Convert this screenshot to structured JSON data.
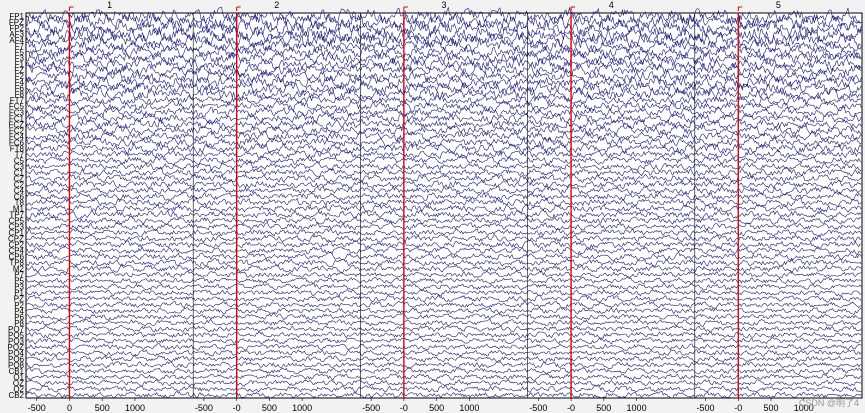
{
  "viewer": {
    "channels": [
      "FP1",
      "FPZ",
      "FP2",
      "AF3",
      "AF4",
      "F7",
      "F5",
      "F3",
      "F1",
      "FZ",
      "F2",
      "F4",
      "F6",
      "F8",
      "FT7",
      "FC5",
      "FC3",
      "FC1",
      "FCZ",
      "FC2",
      "FC4",
      "FC6",
      "FT8",
      "T7",
      "C5",
      "C3",
      "C1",
      "CZ",
      "C2",
      "C4",
      "C6",
      "T8",
      "M1",
      "TP7",
      "CP5",
      "CP3",
      "CP1",
      "CPZ",
      "CP2",
      "CP4",
      "CP6",
      "TP8",
      "M2",
      "P7",
      "P5",
      "P3",
      "P1",
      "PZ",
      "P2",
      "P4",
      "P6",
      "P8",
      "PO7",
      "PO5",
      "PO3",
      "POZ",
      "PO4",
      "PO6",
      "PO8",
      "CB1",
      "O1",
      "OZ",
      "O2",
      "CB2"
    ],
    "epochs": [
      "1",
      "2",
      "3",
      "4",
      "5"
    ],
    "epoch_ticks": [
      "-500",
      "0",
      "500",
      "1000"
    ],
    "epoch_ticks_alt": [
      "-500",
      "-0",
      "500",
      "1000"
    ],
    "trace_color": "#1a1a7a",
    "event_color": "#e00000",
    "background_color": "#ffffff",
    "watermark": "CSDN @明了4"
  }
}
